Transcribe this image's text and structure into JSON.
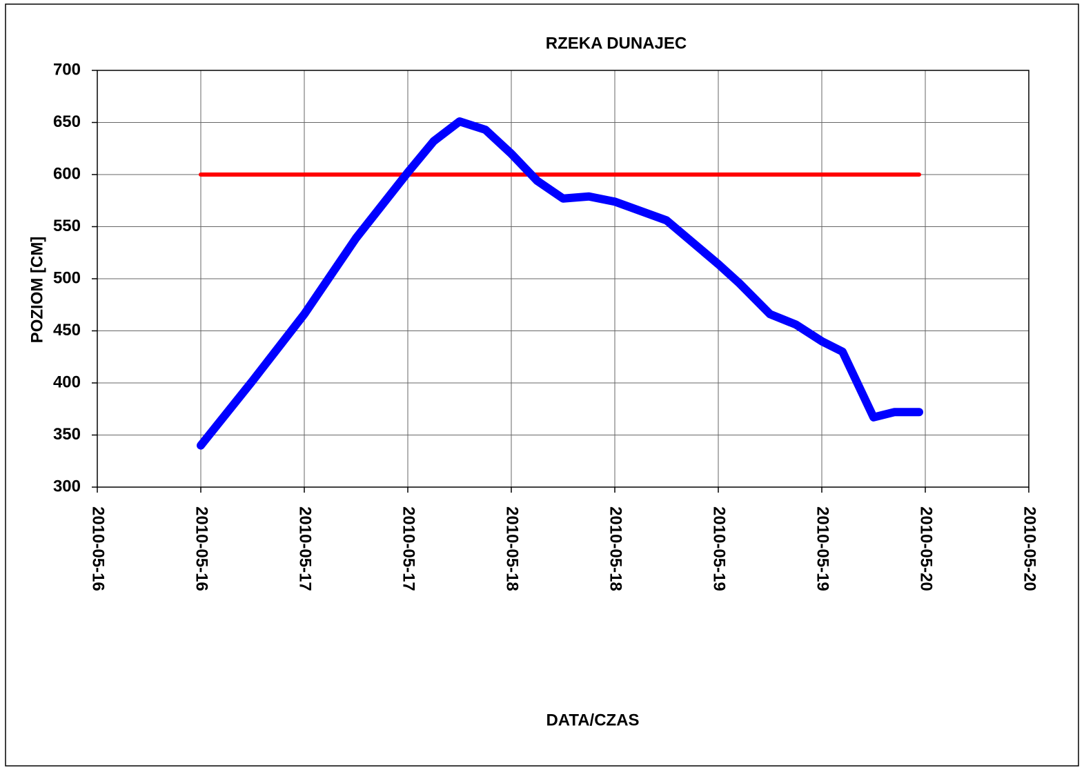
{
  "chart_data": {
    "type": "line",
    "title": "RZEKA  DUNAJEC",
    "xlabel": "DATA/CZAS",
    "ylabel": "POZIOM [CM]",
    "xlim": [
      16,
      20.5
    ],
    "xticks": [
      {
        "value": 16,
        "label": "2010-05-16"
      },
      {
        "value": 16.5,
        "label": "2010-05-16"
      },
      {
        "value": 17,
        "label": "2010-05-17"
      },
      {
        "value": 17.5,
        "label": "2010-05-17"
      },
      {
        "value": 18,
        "label": "2010-05-18"
      },
      {
        "value": 18.5,
        "label": "2010-05-18"
      },
      {
        "value": 19,
        "label": "2010-05-19"
      },
      {
        "value": 19.5,
        "label": "2010-05-19"
      },
      {
        "value": 20,
        "label": "2010-05-20"
      },
      {
        "value": 20.5,
        "label": "2010-05-20"
      }
    ],
    "ylim": [
      300,
      700
    ],
    "yticks": [
      300,
      350,
      400,
      450,
      500,
      550,
      600,
      650,
      700
    ],
    "grid": true,
    "series": [
      {
        "color": "#0000ff",
        "x": [
          16.5,
          16.75,
          17,
          17.25,
          17.5,
          17.625,
          17.75,
          17.875,
          18,
          18.125,
          18.25,
          18.375,
          18.5,
          18.75,
          19,
          19.1,
          19.25,
          19.375,
          19.5,
          19.6,
          19.75,
          19.85,
          19.97
        ],
        "values": [
          340,
          402,
          466,
          539,
          602,
          632,
          651,
          643,
          620,
          594,
          577,
          579,
          574,
          556,
          514,
          496,
          466,
          456,
          440,
          430,
          367,
          372,
          372
        ]
      },
      {
        "color": "#ff0000",
        "x": [
          16.5,
          19.97
        ],
        "values": [
          600,
          600
        ]
      }
    ]
  }
}
